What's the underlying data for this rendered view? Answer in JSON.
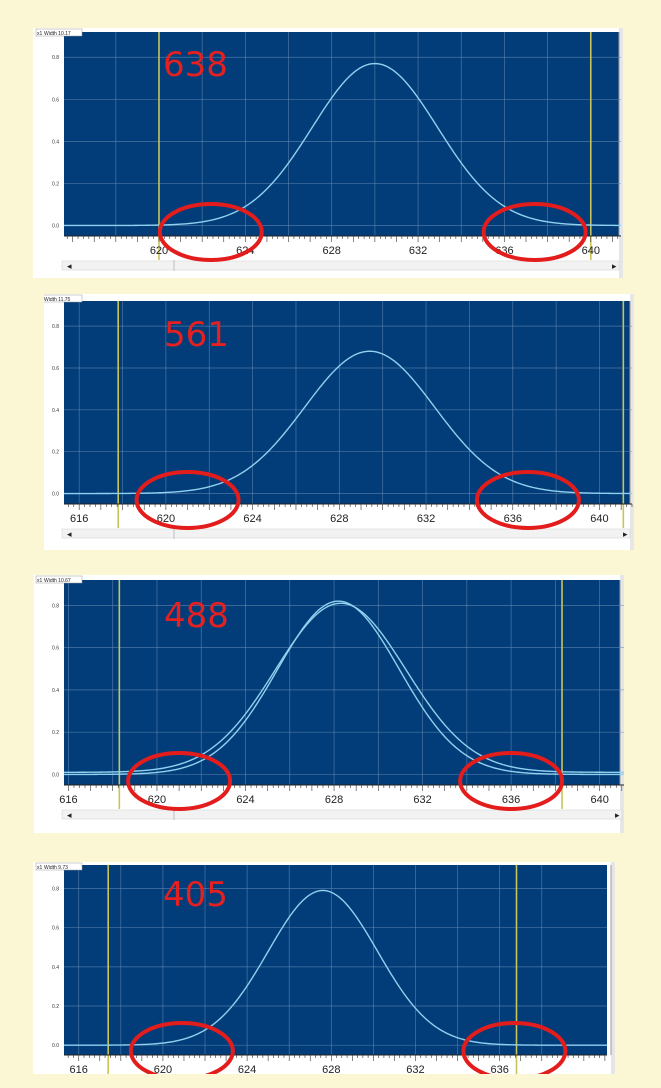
{
  "colors": {
    "page_bg": "#fbf6d3",
    "plot_bg": "#023d7a",
    "grid": "#6a8db3",
    "curve": "#8fd1ee",
    "marker_line": "#c9c45a",
    "highlight_circle": "#e31c1c",
    "label": "#e52020"
  },
  "chart_data": [
    {
      "type": "line",
      "label": "638",
      "width_readout": "Width 10.17",
      "y_unit": "x1",
      "x_ticks": [
        620,
        624,
        628,
        632,
        636,
        640
      ],
      "x_tick_labels": [
        "620",
        "624",
        "628",
        "632",
        "636",
        "640"
      ],
      "y_ticks": [
        0.0,
        0.2,
        0.4,
        0.6,
        0.8
      ],
      "y_tick_labels": [
        "0.0",
        "0.2",
        "0.4",
        "0.6",
        "0.8"
      ],
      "xlim": [
        615.6,
        641.4
      ],
      "ylim": [
        -0.05,
        0.92
      ],
      "marker_lines_x": [
        620.0,
        640.0
      ],
      "series": [
        {
          "peak_center": 630.0,
          "peak_height": 0.77,
          "sigma": 2.9,
          "baseline": 0.0
        }
      ],
      "highlight_circles_x": [
        622.4,
        637.4
      ]
    },
    {
      "type": "line",
      "label": "561",
      "width_readout": "Width 11.75",
      "y_unit": "x1",
      "x_ticks": [
        616,
        620,
        624,
        628,
        632,
        636,
        640
      ],
      "x_tick_labels": [
        "616",
        "620",
        "624",
        "628",
        "632",
        "636",
        "640"
      ],
      "y_ticks": [
        0.0,
        0.2,
        0.4,
        0.6,
        0.8
      ],
      "y_tick_labels": [
        "0.0",
        "0.2",
        "0.4",
        "0.6",
        "0.8"
      ],
      "xlim": [
        615.3,
        641.5
      ],
      "ylim": [
        -0.05,
        0.92
      ],
      "marker_lines_x": [
        617.8,
        641.1
      ],
      "series": [
        {
          "peak_center": 629.4,
          "peak_height": 0.68,
          "sigma": 3.0,
          "baseline": 0.0
        }
      ],
      "highlight_circles_x": [
        621.0,
        636.7
      ]
    },
    {
      "type": "line",
      "label": "488",
      "width_readout": "Width 10.67",
      "y_unit": "x1",
      "x_ticks": [
        616,
        620,
        624,
        628,
        632,
        636,
        640
      ],
      "x_tick_labels": [
        "616",
        "620",
        "624",
        "628",
        "632",
        "636",
        "640"
      ],
      "y_ticks": [
        0.0,
        0.2,
        0.4,
        0.6,
        0.8
      ],
      "y_tick_labels": [
        "0.0",
        "0.2",
        "0.4",
        "0.6",
        "0.8"
      ],
      "xlim": [
        615.8,
        641.1
      ],
      "ylim": [
        -0.05,
        0.92
      ],
      "marker_lines_x": [
        618.3,
        638.3
      ],
      "series": [
        {
          "peak_center": 628.2,
          "peak_height": 0.82,
          "sigma": 2.75,
          "baseline": 0.0
        },
        {
          "peak_center": 628.3,
          "peak_height": 0.8,
          "sigma": 2.95,
          "baseline": 0.01
        }
      ],
      "highlight_circles_x": [
        621.0,
        636.0
      ]
    },
    {
      "type": "line",
      "label": "405",
      "width_readout": "Width 9.73",
      "y_unit": "x1",
      "x_ticks": [
        616,
        620,
        624,
        628,
        632,
        636
      ],
      "x_tick_labels": [
        "616",
        "620",
        "624",
        "628",
        "632",
        "636"
      ],
      "y_ticks": [
        0.0,
        0.2,
        0.4,
        0.6,
        0.8
      ],
      "y_tick_labels": [
        "0.0",
        "0.2",
        "0.4",
        "0.6",
        "0.8"
      ],
      "xlim": [
        615.3,
        641.1
      ],
      "ylim": [
        -0.05,
        0.92
      ],
      "marker_lines_x": [
        617.4,
        636.8
      ],
      "series": [
        {
          "peak_center": 627.6,
          "peak_height": 0.79,
          "sigma": 2.6,
          "baseline": 0.0
        }
      ],
      "highlight_circles_x": [
        620.9,
        636.7
      ]
    }
  ]
}
